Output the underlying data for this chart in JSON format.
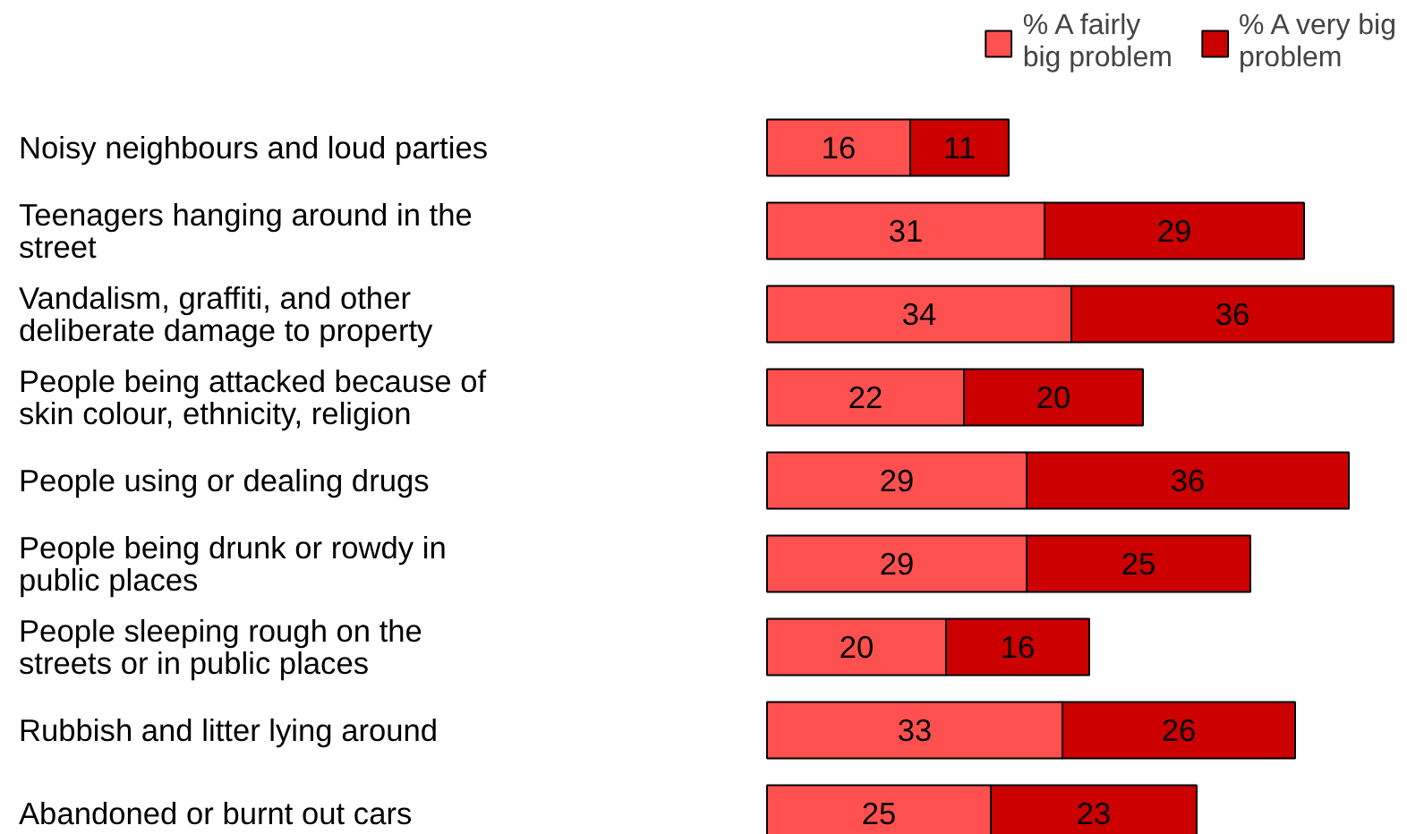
{
  "chart_data": {
    "type": "bar",
    "orientation": "horizontal",
    "stacked": true,
    "data_labels": true,
    "legend": "top right",
    "categories": [
      "Noisy neighbours and loud parties",
      "Teenagers hanging around in the street",
      "Vandalism, graffiti, and other deliberate damage to property",
      "People being attacked because of skin colour, ethnicity, religion",
      "People using or dealing drugs",
      "People being drunk or rowdy in public places",
      "People sleeping rough on the streets or in public places",
      "Rubbish and litter lying around",
      "Abandoned or burnt out cars"
    ],
    "series": [
      {
        "name": "% A fairly big problem",
        "color": "#ff5050",
        "values": [
          16,
          31,
          34,
          22,
          29,
          29,
          20,
          33,
          25
        ]
      },
      {
        "name": "% A very big problem",
        "color": "#cc0000",
        "values": [
          11,
          29,
          36,
          20,
          36,
          25,
          16,
          26,
          23
        ]
      }
    ]
  }
}
